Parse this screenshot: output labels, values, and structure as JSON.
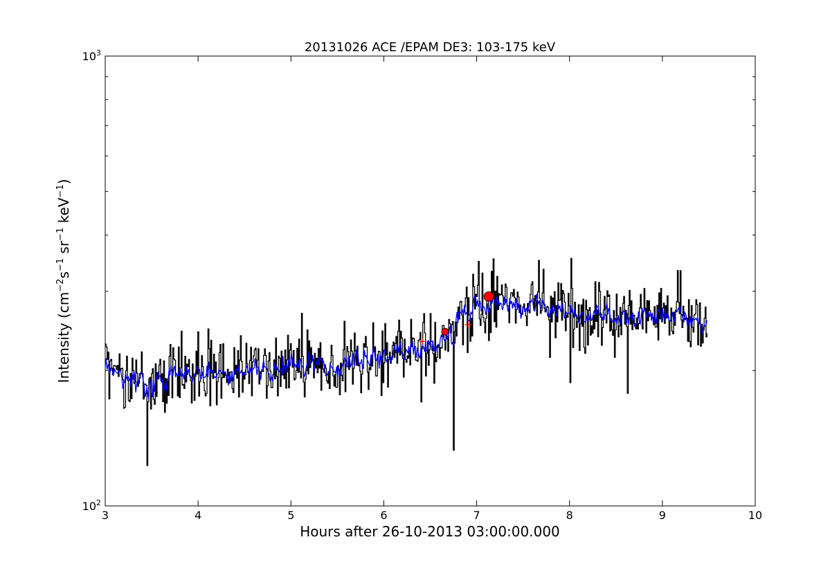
{
  "chart_data": {
    "type": "line",
    "title": "20131026 ACE /EPAM DE3: 103-175 keV",
    "xlabel": "Hours after 26-10-2013 03:00:00.000",
    "ylabel": "Intensity (cm$^{-2}$s$^{-1}$sr$^{-1}$keV$^{-1}$)",
    "ylabel_parts": {
      "prefix": "Intensity (cm",
      "exp1": "−2",
      "mid1": "s",
      "exp2": "−1",
      "mid2": " sr",
      "exp3": "−1",
      "mid3": " keV",
      "exp4": "−1",
      "suffix": ")"
    },
    "xlim": [
      3,
      10
    ],
    "ylim": [
      100,
      1000
    ],
    "yscale": "log",
    "grid": false,
    "x_ticks": [
      3,
      4,
      5,
      6,
      7,
      8,
      9,
      10
    ],
    "y_tick_labels": [
      {
        "value": 100,
        "base": "10",
        "exp": "2"
      },
      {
        "value": 1000,
        "base": "10",
        "exp": "3"
      }
    ],
    "series": [
      {
        "style": "steps",
        "color": "#000000",
        "x_start": 3.0,
        "x_end": 9.48,
        "baseline": [
          [
            3.0,
            195
          ],
          [
            3.5,
            190
          ],
          [
            4.0,
            198
          ],
          [
            4.5,
            197
          ],
          [
            5.0,
            203
          ],
          [
            5.5,
            206
          ],
          [
            6.0,
            214
          ],
          [
            6.4,
            224
          ],
          [
            6.7,
            238
          ],
          [
            6.85,
            268
          ],
          [
            7.0,
            282
          ],
          [
            7.5,
            278
          ],
          [
            8.0,
            272
          ],
          [
            8.5,
            266
          ],
          [
            9.0,
            262
          ],
          [
            9.48,
            256
          ]
        ],
        "notable_points": [
          [
            3.45,
            123
          ],
          [
            6.75,
            133
          ],
          [
            7.0,
            292
          ],
          [
            7.17,
            297
          ],
          [
            8.0,
            188
          ],
          [
            8.62,
            178
          ]
        ]
      },
      {
        "style": "smoothed",
        "color": "#0000ff",
        "x_start": 3.0,
        "x_end": 9.48,
        "baseline": [
          [
            3.0,
            193
          ],
          [
            3.5,
            188
          ],
          [
            4.0,
            197
          ],
          [
            4.5,
            197
          ],
          [
            5.0,
            203
          ],
          [
            5.5,
            206
          ],
          [
            6.0,
            214
          ],
          [
            6.4,
            224
          ],
          [
            6.7,
            238
          ],
          [
            6.85,
            266
          ],
          [
            7.0,
            278
          ],
          [
            7.5,
            276
          ],
          [
            8.0,
            271
          ],
          [
            8.5,
            265
          ],
          [
            9.0,
            261
          ],
          [
            9.48,
            255
          ]
        ]
      }
    ],
    "markers": [
      {
        "x": 6.66,
        "y": 244,
        "shape": "circle",
        "color": "#ff0000",
        "size": "small"
      },
      {
        "x": 7.13,
        "y": 292,
        "shape": "circle",
        "color": "#ff0000",
        "size": "large"
      },
      {
        "x": 6.42,
        "y": 232,
        "shape": "plus",
        "color": "#ff0000"
      },
      {
        "x": 6.91,
        "y": 253,
        "shape": "plus",
        "color": "#ff0000"
      }
    ]
  }
}
